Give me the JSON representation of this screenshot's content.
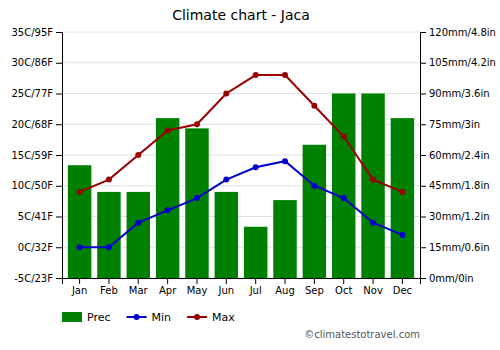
{
  "chart_data": {
    "type": "bar",
    "title": "Climate chart - Jaca",
    "categories": [
      "Jan",
      "Feb",
      "Mar",
      "Apr",
      "May",
      "Jun",
      "Jul",
      "Aug",
      "Sep",
      "Oct",
      "Nov",
      "Dec"
    ],
    "series": [
      {
        "name": "Prec",
        "type": "bar",
        "axis": "y2",
        "color": "#008000",
        "values": [
          55,
          42,
          42,
          78,
          73,
          42,
          25,
          38,
          65,
          90,
          90,
          78
        ]
      },
      {
        "name": "Min",
        "type": "line",
        "color": "#0000cc",
        "marker": "circle",
        "values": [
          0,
          0,
          4,
          6,
          8,
          11,
          13,
          14,
          10,
          8,
          4,
          2
        ]
      },
      {
        "name": "Max",
        "type": "line",
        "color": "#990000",
        "marker": "circle",
        "values": [
          9,
          11,
          15,
          19,
          20,
          25,
          28,
          28,
          23,
          18,
          11,
          9
        ]
      }
    ],
    "ylim": [
      -5,
      35
    ],
    "yticks": [
      {
        "value": -5,
        "label": "-5C/23F"
      },
      {
        "value": 0,
        "label": "0C/32F"
      },
      {
        "value": 5,
        "label": "5C/41F"
      },
      {
        "value": 10,
        "label": "10C/50F"
      },
      {
        "value": 15,
        "label": "15C/59F"
      },
      {
        "value": 20,
        "label": "20C/68F"
      },
      {
        "value": 25,
        "label": "25C/77F"
      },
      {
        "value": 30,
        "label": "30C/86F"
      },
      {
        "value": 35,
        "label": "35C/95F"
      }
    ],
    "y2lim": [
      0,
      120
    ],
    "y2ticks": [
      {
        "value": 0,
        "label": "0mm/0in"
      },
      {
        "value": 15,
        "label": "15mm/0.6in"
      },
      {
        "value": 30,
        "label": "30mm/1.2in"
      },
      {
        "value": 45,
        "label": "45mm/1.8in"
      },
      {
        "value": 60,
        "label": "60mm/2.4in"
      },
      {
        "value": 75,
        "label": "75mm/3in"
      },
      {
        "value": 90,
        "label": "90mm/3.6in"
      },
      {
        "value": 105,
        "label": "105mm/4.2in"
      },
      {
        "value": 120,
        "label": "120mm/4.8in"
      }
    ],
    "grid": true,
    "legend": "bottom",
    "annotations": [
      "©climatestotravel.com"
    ]
  }
}
